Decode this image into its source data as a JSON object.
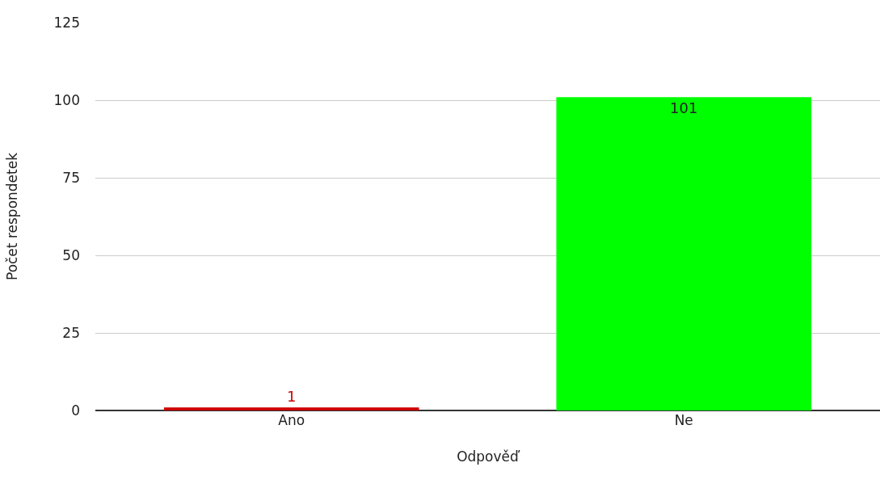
{
  "chart_data": {
    "type": "bar",
    "xlabel": "Odpověď",
    "ylabel": "Počet respondetek",
    "categories": [
      "Ano",
      "Ne"
    ],
    "values": [
      1,
      101
    ],
    "colors": [
      "#cc0000",
      "#00ff00"
    ],
    "ylim": [
      0,
      125
    ],
    "yticks": [
      0,
      25,
      50,
      75,
      100,
      125
    ],
    "grid": "y",
    "data_labels": true
  }
}
